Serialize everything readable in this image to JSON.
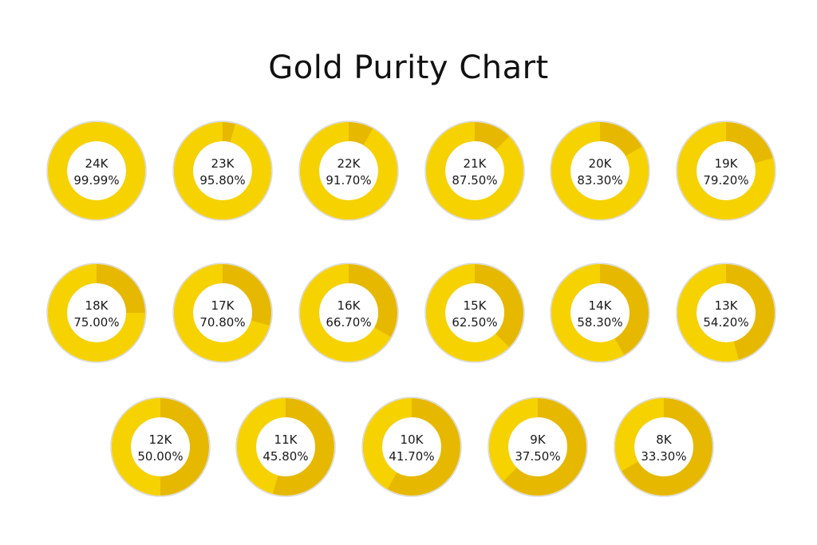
{
  "title": "Gold Purity Chart",
  "colors": {
    "gold_fill": "#F6D200",
    "gold_remainder": "#E6B800",
    "outline": "#D9D9D9",
    "background": "#FFFFFF",
    "text": "#1A1A1A"
  },
  "chart_data": {
    "type": "pie",
    "variant": "donut",
    "title": "Gold Purity Chart",
    "rows": [
      [
        {
          "karat": "24K",
          "purity_label": "99.99%",
          "purity": 99.99
        },
        {
          "karat": "23K",
          "purity_label": "95.80%",
          "purity": 95.8
        },
        {
          "karat": "22K",
          "purity_label": "91.70%",
          "purity": 91.7
        },
        {
          "karat": "21K",
          "purity_label": "87.50%",
          "purity": 87.5
        },
        {
          "karat": "20K",
          "purity_label": "83.30%",
          "purity": 83.3
        },
        {
          "karat": "19K",
          "purity_label": "79.20%",
          "purity": 79.2
        }
      ],
      [
        {
          "karat": "18K",
          "purity_label": "75.00%",
          "purity": 75.0
        },
        {
          "karat": "17K",
          "purity_label": "70.80%",
          "purity": 70.8
        },
        {
          "karat": "16K",
          "purity_label": "66.70%",
          "purity": 66.7
        },
        {
          "karat": "15K",
          "purity_label": "62.50%",
          "purity": 62.5
        },
        {
          "karat": "14K",
          "purity_label": "58.30%",
          "purity": 58.3
        },
        {
          "karat": "13K",
          "purity_label": "54.20%",
          "purity": 54.2
        }
      ],
      [
        {
          "karat": "12K",
          "purity_label": "50.00%",
          "purity": 50.0
        },
        {
          "karat": "11K",
          "purity_label": "45.80%",
          "purity": 45.8
        },
        {
          "karat": "10K",
          "purity_label": "41.70%",
          "purity": 41.7
        },
        {
          "karat": "9K",
          "purity_label": "37.50%",
          "purity": 37.5
        },
        {
          "karat": "8K",
          "purity_label": "33.30%",
          "purity": 33.3
        }
      ]
    ]
  }
}
